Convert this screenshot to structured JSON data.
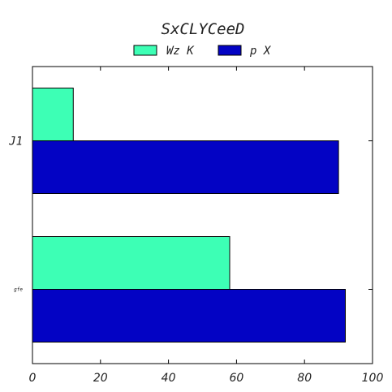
{
  "chart_data": {
    "type": "bar",
    "orientation": "horizontal",
    "title": "SxCLYCeeD",
    "categories": [
      "J1",
      "gfe"
    ],
    "series": [
      {
        "name": "Wz K",
        "color": "#3dffb5",
        "values": [
          12,
          58
        ]
      },
      {
        "name": "p X",
        "color": "#0303c4",
        "values": [
          90,
          92
        ]
      }
    ],
    "xlim": [
      0,
      100
    ],
    "xticks": [
      0,
      20,
      40,
      60,
      80,
      100
    ],
    "xtick_labels": [
      "0",
      "20",
      "40",
      "60",
      "80",
      "100"
    ],
    "xlabel": "",
    "ylabel": "",
    "grid": false,
    "legend_position": "top-center"
  }
}
